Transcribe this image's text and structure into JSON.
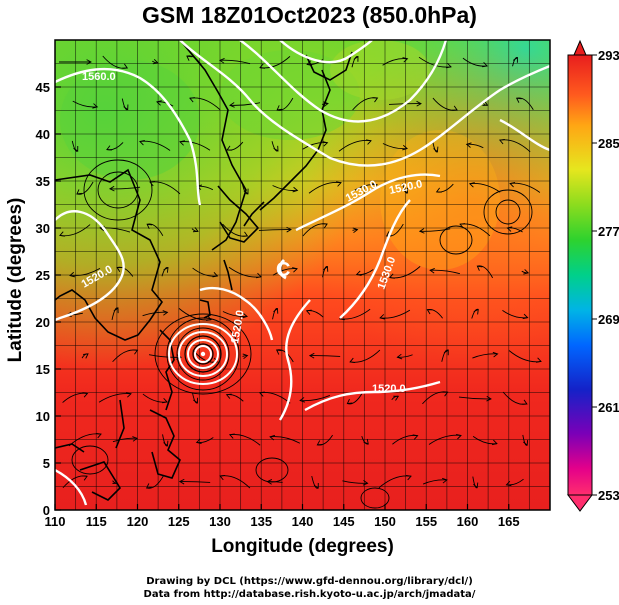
{
  "title": "GSM 18Z01Oct2023 (850.0hPa)",
  "xlabel": "Longitude (degrees)",
  "ylabel": "Latitude  (degrees)",
  "credits": [
    "Drawing by DCL (https://www.gfd-dennou.org/library/dcl/)",
    "Data from http://database.rish.kyoto-u.ac.jp/arch/jmadata/"
  ],
  "map": {
    "lon_range": [
      110,
      170
    ],
    "lat_range": [
      0,
      50
    ],
    "lon_ticks": [
      "110",
      "115",
      "120",
      "125",
      "130",
      "135",
      "140",
      "145",
      "150",
      "155",
      "160",
      "165"
    ],
    "lat_ticks": [
      "0",
      "5",
      "10",
      "15",
      "20",
      "25",
      "30",
      "35",
      "40",
      "45"
    ],
    "field": "temperature (colour shading)",
    "overlays": [
      "geopotential height contours (white)",
      "wind streamlines (black)",
      "coastlines"
    ],
    "contour_labels": [
      "1560.0",
      "1530.0",
      "1520.0",
      "1520.0",
      "1530.0",
      "1520.0",
      "1520.0"
    ],
    "low_center_marker": "C",
    "typhoon_center": {
      "lon": 127.5,
      "lat": 18.5
    }
  },
  "colorbar": {
    "min": 253,
    "max": 293,
    "tick_labels": [
      "293",
      "285",
      "277",
      "269",
      "261",
      "253"
    ],
    "colors": [
      "#ff2e6e",
      "#e4008a",
      "#7a00b8",
      "#1422c8",
      "#0066ff",
      "#00b4e6",
      "#00d08a",
      "#2ed22e",
      "#8cdc1e",
      "#e6e61e",
      "#ffa614",
      "#ff5a1e",
      "#e81e1e"
    ]
  }
}
